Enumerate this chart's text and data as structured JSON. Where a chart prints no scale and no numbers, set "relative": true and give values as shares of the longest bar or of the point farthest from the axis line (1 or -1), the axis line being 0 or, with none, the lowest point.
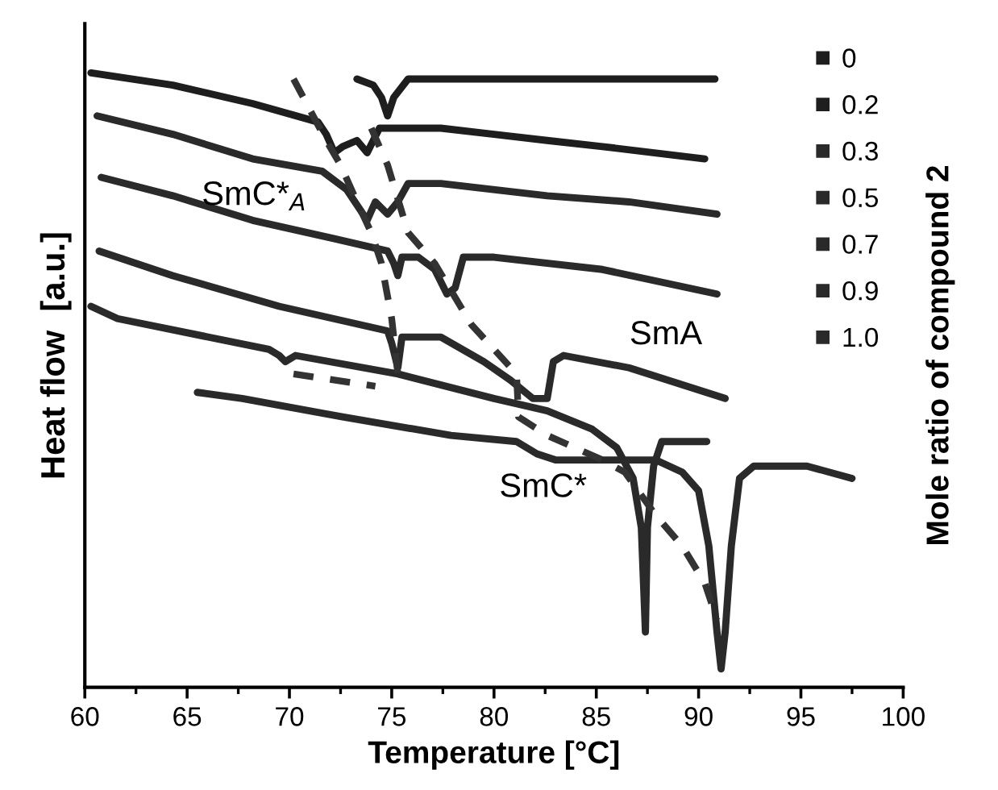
{
  "chart_data": {
    "type": "line",
    "relative": true,
    "xlabel": "Temperature [°C]",
    "ylabel": "Heat flow  [a.u.]",
    "y2label": "Mole ratio of compound 2",
    "xlim": [
      60,
      100
    ],
    "xticks": [
      60,
      65,
      70,
      75,
      80,
      85,
      90,
      95,
      100
    ],
    "grid": false,
    "legend": "top right",
    "marker": "none",
    "line_style": "solid",
    "series": [
      {
        "name": "0",
        "color": "#1e1e1e",
        "x": [
          73.3,
          74.1,
          74.5,
          74.8,
          75.1,
          75.8,
          77.4,
          90.8
        ],
        "values": [
          0.99,
          0.98,
          0.96,
          0.93,
          0.96,
          0.99,
          0.99,
          0.99
        ]
      },
      {
        "name": "0.2",
        "color": "#1e1e1e",
        "x": [
          60.3,
          64.3,
          68.2,
          71.4,
          71.8,
          72.2,
          72.6,
          73.3,
          73.8,
          74.4,
          77.4,
          80.0,
          82.6,
          85.3,
          90.3
        ],
        "values": [
          1.0,
          0.98,
          0.95,
          0.92,
          0.9,
          0.87,
          0.88,
          0.89,
          0.87,
          0.91,
          0.91,
          0.9,
          0.89,
          0.88,
          0.86
        ]
      },
      {
        "name": "0.3",
        "color": "#2a2a2a",
        "x": [
          60.6,
          64.3,
          68.2,
          71.6,
          72.8,
          73.4,
          73.8,
          74.2,
          74.8,
          75.3,
          75.8,
          77.4,
          82.6,
          86.6,
          90.9
        ],
        "values": [
          0.93,
          0.9,
          0.86,
          0.84,
          0.81,
          0.78,
          0.76,
          0.79,
          0.77,
          0.79,
          0.82,
          0.82,
          0.8,
          0.79,
          0.77
        ]
      },
      {
        "name": "0.5",
        "color": "#2a2a2a",
        "x": [
          60.8,
          64.3,
          68.2,
          72.2,
          74.8,
          75.1,
          75.3,
          75.5,
          76.3,
          77.1,
          77.7,
          78.1,
          78.5,
          80.0,
          85.3,
          90.9
        ],
        "values": [
          0.83,
          0.8,
          0.76,
          0.73,
          0.71,
          0.69,
          0.67,
          0.7,
          0.7,
          0.68,
          0.64,
          0.65,
          0.7,
          0.7,
          0.68,
          0.64
        ]
      },
      {
        "name": "0.7",
        "color": "#2a2a2a",
        "x": [
          60.7,
          64.3,
          69.5,
          74.8,
          75.0,
          75.3,
          75.5,
          77.4,
          79.5,
          80.8,
          81.9,
          82.6,
          82.9,
          83.4,
          86.6,
          91.3
        ],
        "values": [
          0.71,
          0.67,
          0.62,
          0.58,
          0.56,
          0.52,
          0.57,
          0.57,
          0.53,
          0.5,
          0.47,
          0.47,
          0.53,
          0.54,
          0.52,
          0.47
        ]
      },
      {
        "name": "0.9",
        "color": "#2a2a2a",
        "x": [
          60.3,
          61.6,
          69.0,
          69.5,
          69.8,
          70.3,
          75.3,
          80.0,
          82.6,
          84.8,
          86.0,
          86.8,
          87.2,
          87.4,
          87.5,
          87.8,
          88.2,
          90.4
        ],
        "values": [
          0.62,
          0.6,
          0.55,
          0.54,
          0.53,
          0.54,
          0.51,
          0.47,
          0.45,
          0.42,
          0.39,
          0.34,
          0.26,
          0.09,
          0.26,
          0.36,
          0.4,
          0.4
        ]
      },
      {
        "name": "1.0",
        "color": "#2a2a2a",
        "x": [
          65.5,
          67.7,
          72.6,
          77.9,
          81.1,
          82.1,
          83.0,
          85.3,
          87.9,
          89.2,
          90.0,
          90.5,
          90.9,
          91.1,
          91.3,
          91.6,
          92.0,
          92.7,
          95.3,
          97.5
        ],
        "values": [
          0.48,
          0.47,
          0.44,
          0.41,
          0.4,
          0.38,
          0.37,
          0.37,
          0.37,
          0.35,
          0.32,
          0.23,
          0.09,
          0.03,
          0.09,
          0.23,
          0.34,
          0.36,
          0.36,
          0.34
        ]
      },
      {
        "color": "#333333",
        "line_style": "dashed",
        "x": [
          70.2,
          71.0,
          71.8,
          72.5,
          73.3,
          74.0,
          74.5,
          75.0,
          75.3
        ],
        "values": [
          0.99,
          0.94,
          0.89,
          0.85,
          0.79,
          0.74,
          0.69,
          0.6,
          0.51
        ]
      },
      {
        "color": "#333333",
        "line_style": "dashed",
        "x": [
          74.0,
          74.8,
          75.8,
          77.1,
          78.9,
          80.0,
          81.1,
          81.2,
          82.6,
          85.3,
          86.4,
          87.9,
          89.2,
          90.3,
          90.9
        ],
        "values": [
          0.91,
          0.85,
          0.74,
          0.69,
          0.59,
          0.55,
          0.51,
          0.44,
          0.41,
          0.37,
          0.35,
          0.28,
          0.23,
          0.17,
          0.11
        ]
      },
      {
        "color": "#333333",
        "line_style": "dashed",
        "x": [
          70.2,
          74.2
        ],
        "values": [
          0.51,
          0.49
        ]
      }
    ],
    "annotations": [
      "SmC*$_{A}$",
      "SmA",
      "SmC*"
    ]
  }
}
